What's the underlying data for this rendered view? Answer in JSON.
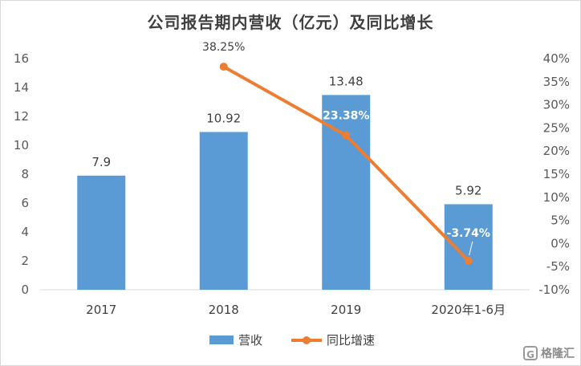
{
  "chart_data": {
    "type": "bar",
    "title": "公司报告期内营收（亿元）及同比增长",
    "categories": [
      "2017",
      "2018",
      "2019",
      "2020年1-6月"
    ],
    "series": [
      {
        "name": "营收",
        "type": "bar",
        "axis": "left",
        "values": [
          7.9,
          10.92,
          13.48,
          5.92
        ],
        "labels": [
          "7.9",
          "10.92",
          "13.48",
          "5.92"
        ],
        "color": "#5b9bd5"
      },
      {
        "name": "同比增速",
        "type": "line",
        "axis": "right",
        "values": [
          null,
          38.25,
          23.38,
          -3.74
        ],
        "labels": [
          "",
          "38.25%",
          "23.38%",
          "-3.74%"
        ],
        "color": "#ed7d31"
      }
    ],
    "y_left": {
      "ylim": [
        0,
        16
      ],
      "ticks": [
        "0",
        "2",
        "4",
        "6",
        "8",
        "10",
        "12",
        "14",
        "16"
      ]
    },
    "y_right": {
      "ylim": [
        -10,
        40
      ],
      "ticks": [
        "-10%",
        "-5%",
        "0%",
        "5%",
        "10%",
        "15%",
        "20%",
        "25%",
        "30%",
        "35%",
        "40%"
      ]
    },
    "grid": false,
    "legend": "bottom"
  },
  "watermark": {
    "icon": "G",
    "text": "格隆汇"
  }
}
